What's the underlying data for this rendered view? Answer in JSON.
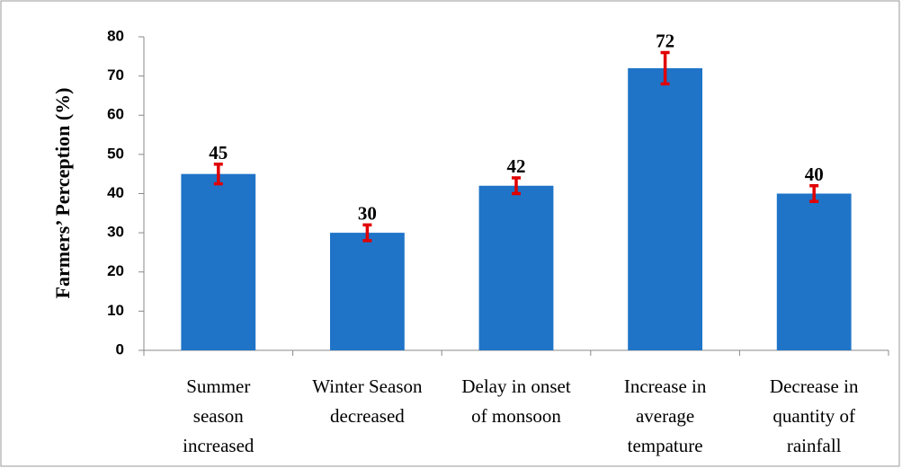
{
  "chart_data": {
    "type": "bar",
    "y_label": "Farmers’ Perception (%)",
    "categories": [
      "Summer season increased",
      "Winter Season decreased",
      "Delay in onset of monsoon",
      "Increase in average tempature",
      "Decrease in quantity of rainfall"
    ],
    "series": [
      {
        "name": "Perception",
        "color": "#1f74c8",
        "values": [
          45,
          30,
          42,
          72,
          40
        ],
        "errors": [
          2.5,
          2,
          2,
          4,
          2
        ],
        "error_color": "#e00000"
      }
    ],
    "ylim": [
      0,
      80
    ],
    "yticks": [
      0,
      10,
      20,
      30,
      40,
      50,
      60,
      70,
      80
    ],
    "grid": false
  }
}
